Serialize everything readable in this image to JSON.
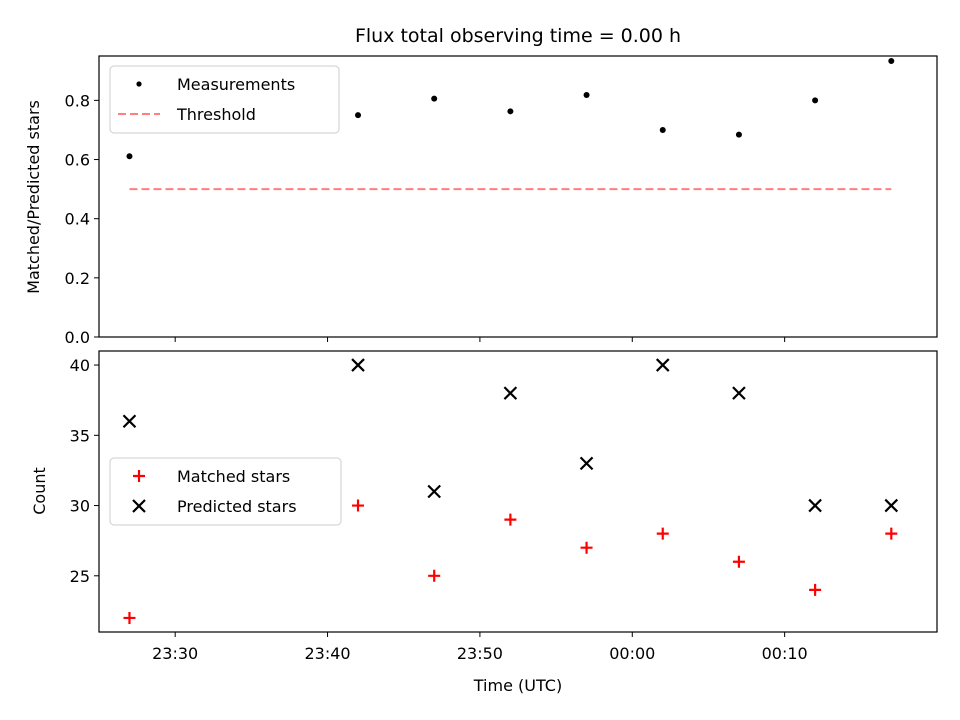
{
  "chart_data": {
    "title": "Flux total observing time = 0.00 h",
    "xlabel": "Time (UTC)",
    "x_ticks": [
      "23:30",
      "23:40",
      "23:50",
      "00:00",
      "00:10"
    ],
    "x_times": [
      "23:27",
      "23:42",
      "23:47",
      "23:52",
      "23:57",
      "00:02",
      "00:07",
      "00:12",
      "00:17"
    ],
    "x_range": [
      "23:25",
      "00:20"
    ],
    "panels": [
      {
        "type": "scatter",
        "ylabel": "Matched/Predicted stars",
        "ylim": [
          0,
          0.95
        ],
        "yticks": [
          "0.0",
          "0.2",
          "0.4",
          "0.6",
          "0.8"
        ],
        "legend": "top-left",
        "series": [
          {
            "name": "Measurements",
            "marker": "dot",
            "color": "#000000",
            "values": [
              0.611,
              0.75,
              0.806,
              0.763,
              0.818,
              0.7,
              0.684,
              0.8,
              0.933
            ]
          },
          {
            "name": "Threshold",
            "marker": "dashed-line",
            "color": "#ff7f7f",
            "values": [
              0.5,
              0.5,
              0.5,
              0.5,
              0.5,
              0.5,
              0.5,
              0.5,
              0.5
            ]
          }
        ]
      },
      {
        "type": "scatter",
        "ylabel": "Count",
        "ylim": [
          21,
          41
        ],
        "yticks": [
          "25",
          "30",
          "35",
          "40"
        ],
        "legend": "center-left",
        "series": [
          {
            "name": "Matched stars",
            "marker": "plus",
            "color": "#ff0000",
            "values": [
              22,
              30,
              25,
              29,
              27,
              28,
              26,
              24,
              28
            ]
          },
          {
            "name": "Predicted stars",
            "marker": "x",
            "color": "#000000",
            "values": [
              36,
              40,
              31,
              38,
              33,
              40,
              38,
              30,
              30
            ]
          }
        ]
      }
    ]
  }
}
